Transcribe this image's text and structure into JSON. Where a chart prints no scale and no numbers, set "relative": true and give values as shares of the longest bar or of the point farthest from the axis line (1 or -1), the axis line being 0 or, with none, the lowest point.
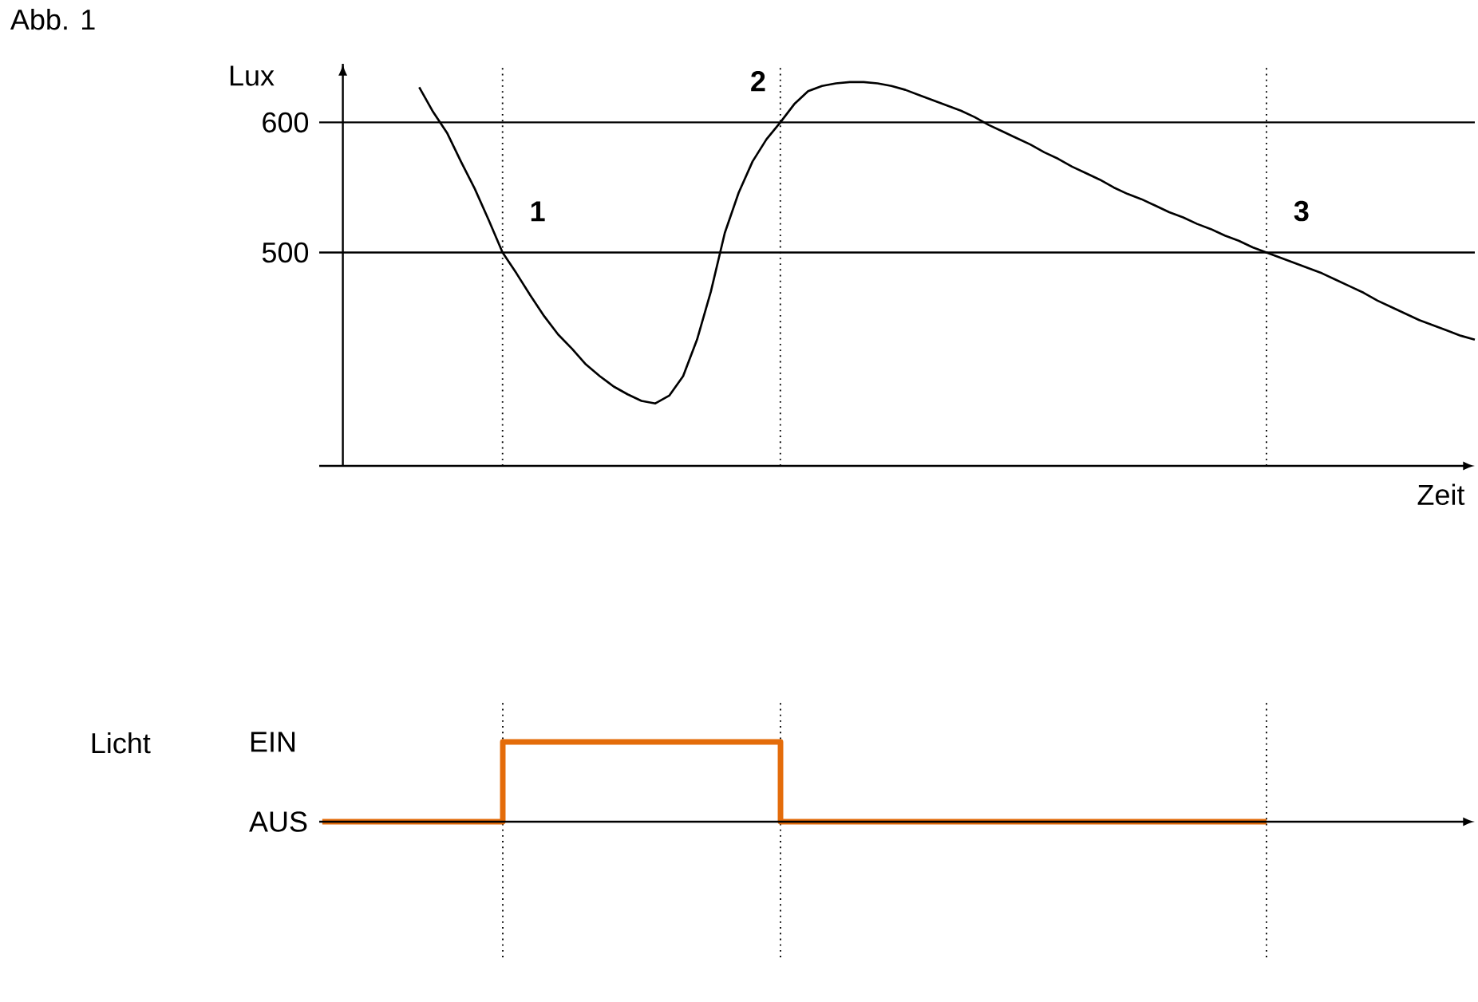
{
  "chart_data": [
    {
      "type": "line",
      "title": "Abb. 1",
      "xlabel": "Zeit",
      "ylabel": "Lux",
      "color": "#000000",
      "categories": [
        null,
        null,
        null,
        null,
        null,
        null,
        null,
        null,
        null,
        null,
        null,
        null,
        null,
        null,
        null,
        null,
        null,
        null,
        null,
        null,
        null,
        null,
        null,
        null,
        null,
        null,
        null,
        null,
        null,
        null,
        null,
        null,
        null,
        null,
        null,
        null,
        null,
        null,
        null,
        null,
        null,
        null,
        null,
        null,
        null,
        null,
        null,
        null,
        null,
        null,
        null,
        null,
        null,
        null,
        null,
        null,
        null,
        null,
        null,
        null,
        null,
        null,
        null,
        null,
        null,
        null,
        null,
        null,
        null,
        null,
        null,
        null,
        null,
        null,
        null,
        null,
        null
      ],
      "values": [
        627,
        608,
        592,
        570,
        549,
        525,
        500,
        484,
        467,
        451,
        437,
        426,
        414,
        405,
        397,
        391,
        386,
        384,
        390,
        405,
        433,
        470,
        515,
        546,
        570,
        587,
        600,
        614,
        624,
        628,
        630,
        631,
        631,
        630,
        628,
        625,
        621,
        617,
        613,
        609,
        604,
        598,
        593,
        588,
        583,
        577,
        572,
        566,
        561,
        556,
        550,
        545,
        541,
        536,
        531,
        527,
        522,
        518,
        513,
        509,
        504,
        500,
        496,
        492,
        488,
        484,
        479,
        474,
        469,
        463,
        458,
        453,
        448,
        444,
        440,
        436,
        433
      ],
      "ylim": [
        336,
        645
      ],
      "yticks": [
        500,
        600
      ],
      "tick_labels": "y",
      "grid": true,
      "annotations": [
        "1",
        "2",
        "3"
      ]
    },
    {
      "type": "step",
      "ylabel": "Licht",
      "color": "#e46c0a",
      "categories": [
        null,
        null,
        null,
        null,
        null,
        null,
        null,
        null,
        null,
        null,
        null,
        null,
        null,
        null,
        null,
        null,
        null,
        null,
        null,
        null,
        null,
        null,
        null,
        null,
        null,
        null,
        null,
        null,
        null,
        null,
        null,
        null,
        null,
        null,
        null,
        null,
        null,
        null,
        null,
        null,
        null,
        null,
        null,
        null,
        null,
        null,
        null,
        null,
        null,
        null,
        null,
        null,
        null,
        null,
        null,
        null,
        null,
        null,
        null,
        null,
        null,
        null,
        null,
        null,
        null,
        null,
        null,
        null,
        null
      ],
      "values": [
        0,
        0,
        0,
        0,
        0,
        0,
        0,
        0,
        0,
        0,
        0,
        0,
        0,
        1,
        1,
        1,
        1,
        1,
        1,
        1,
        1,
        1,
        1,
        1,
        1,
        1,
        1,
        1,
        1,
        1,
        1,
        1,
        1,
        0,
        0,
        0,
        0,
        0,
        0,
        0,
        0,
        0,
        0,
        0,
        0,
        0,
        0,
        0,
        0,
        0,
        0,
        0,
        0,
        0,
        0,
        0,
        0,
        0,
        0,
        0,
        0,
        0,
        0,
        0,
        0,
        0,
        0,
        0,
        0
      ],
      "relative": true,
      "tick_labels": false,
      "grid": "x",
      "annotations": [
        "EIN",
        "AUS"
      ]
    }
  ]
}
